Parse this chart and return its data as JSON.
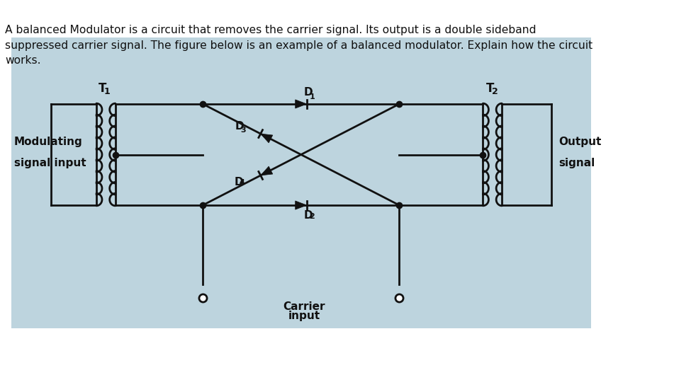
{
  "bg_color": "#bdd4de",
  "page_bg": "#ffffff",
  "line_color": "#111111",
  "text_color": "#111111",
  "title_text": "A balanced Modulator is a circuit that removes the carrier signal. Its output is a double sideband\nsuppressed carrier signal. The figure below is an example of a balanced modulator. Explain how the circuit\nworks.",
  "title_fontsize": 11.2,
  "label_modulating": "Modulating\nsignal input",
  "label_output": "Output\nsignal",
  "label_carrier": "Carrier\ninput",
  "label_T1": "T",
  "label_T1_sub": "1",
  "label_T2": "T",
  "label_T2_sub": "2",
  "label_D1": "D",
  "label_D1_sub": "1",
  "label_D2": "D",
  "label_D2_sub": "2",
  "label_D3": "D",
  "label_D3_sub": "3",
  "label_D4": "D",
  "label_D4_sub": "4"
}
